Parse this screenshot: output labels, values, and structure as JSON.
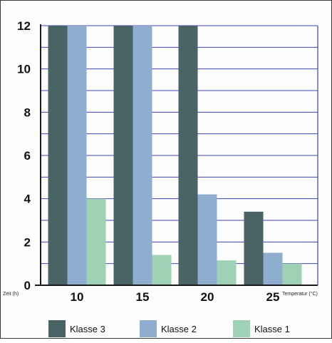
{
  "chart_data": {
    "type": "bar",
    "categories": [
      "10",
      "15",
      "20",
      "25"
    ],
    "series": [
      {
        "name": "Klasse 3",
        "color": "#4a6466",
        "values": [
          12,
          12,
          12,
          3.4
        ]
      },
      {
        "name": "Klasse 2",
        "color": "#8eadcf",
        "values": [
          12,
          12,
          4.2,
          1.5
        ]
      },
      {
        "name": "Klasse 1",
        "color": "#9fd1b4",
        "values": [
          4,
          1.4,
          1.15,
          1.0
        ]
      }
    ],
    "yticks": [
      "0",
      "2",
      "4",
      "6",
      "8",
      "10",
      "12"
    ],
    "ylim": [
      0,
      12
    ],
    "xlabel": "Temperatur (°C)",
    "ylabel": "Zeit (h)",
    "grid": true,
    "legend": "bottom",
    "colors": {
      "grid": "#3b46b5",
      "axis": "#1a1a1a",
      "frame": "#3a3a3a"
    }
  }
}
